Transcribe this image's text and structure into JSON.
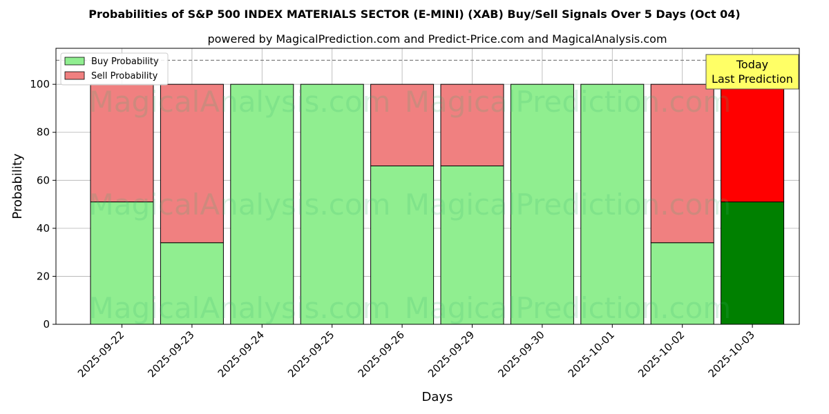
{
  "chart_data": {
    "type": "bar",
    "stacked": true,
    "title": "Probabilities of S&P 500 INDEX MATERIALS SECTOR (E-MINI) (XAB) Buy/Sell Signals Over 5 Days (Oct 04)",
    "subtitle": "powered by MagicalPrediction.com and Predict-Price.com and MagicalAnalysis.com",
    "xlabel": "Days",
    "ylabel": "Probability",
    "ylim": [
      0,
      115
    ],
    "yticks": [
      0,
      20,
      40,
      60,
      80,
      100
    ],
    "grid": true,
    "legend_position": "top-left",
    "reference_line": 110,
    "categories": [
      "2025-09-22",
      "2025-09-23",
      "2025-09-24",
      "2025-09-25",
      "2025-09-26",
      "2025-09-29",
      "2025-09-30",
      "2025-10-01",
      "2025-10-02",
      "2025-10-03"
    ],
    "series": [
      {
        "name": "Buy Probability",
        "values": [
          51,
          34,
          100,
          100,
          66,
          66,
          100,
          100,
          34,
          51
        ],
        "color": "#90ee90",
        "highlight_color": "#008000"
      },
      {
        "name": "Sell Probability",
        "values": [
          49,
          66,
          0,
          0,
          34,
          34,
          0,
          0,
          66,
          49
        ],
        "color": "#f08080",
        "highlight_color": "#ff0000"
      }
    ],
    "highlight_index": 9,
    "annotation": {
      "line1": "Today",
      "line2": "Last Prediction",
      "background": "#ffff66"
    },
    "watermarks": [
      "MagicalAnalysis.com",
      "MagicalPrediction.com"
    ]
  }
}
